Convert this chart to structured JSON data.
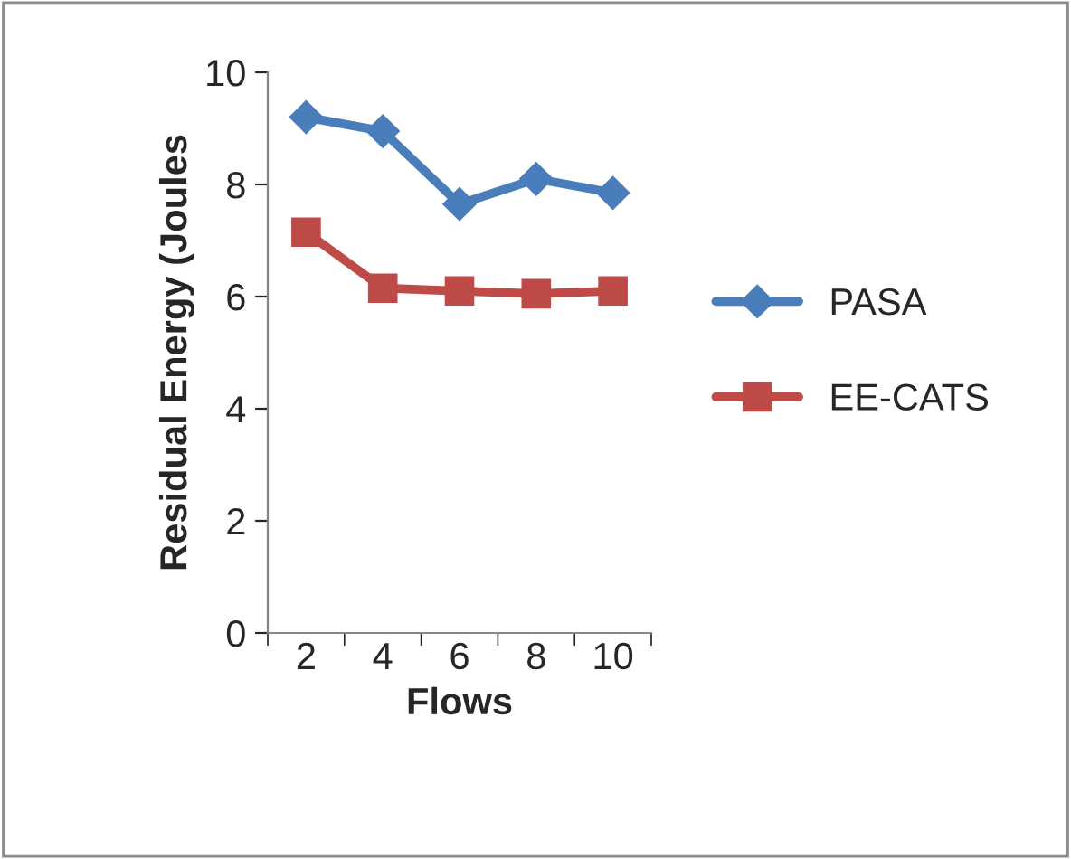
{
  "chart_data": {
    "type": "line",
    "xlabel": "Flows",
    "ylabel": "Residual Energy (Joules",
    "categories": [
      "2",
      "4",
      "6",
      "8",
      "10"
    ],
    "series": [
      {
        "name": "PASA",
        "color": "#4a7ebb",
        "marker": "diamond",
        "values": [
          9.2,
          8.95,
          7.65,
          8.1,
          7.85
        ]
      },
      {
        "name": "EE-CATS",
        "color": "#be4b48",
        "marker": "square",
        "values": [
          7.15,
          6.15,
          6.1,
          6.05,
          6.1
        ]
      }
    ],
    "ylim": [
      0,
      10
    ],
    "yticks": [
      0,
      2,
      4,
      6,
      8,
      10
    ],
    "grid": false,
    "legend": "right",
    "line_style": "solid"
  }
}
